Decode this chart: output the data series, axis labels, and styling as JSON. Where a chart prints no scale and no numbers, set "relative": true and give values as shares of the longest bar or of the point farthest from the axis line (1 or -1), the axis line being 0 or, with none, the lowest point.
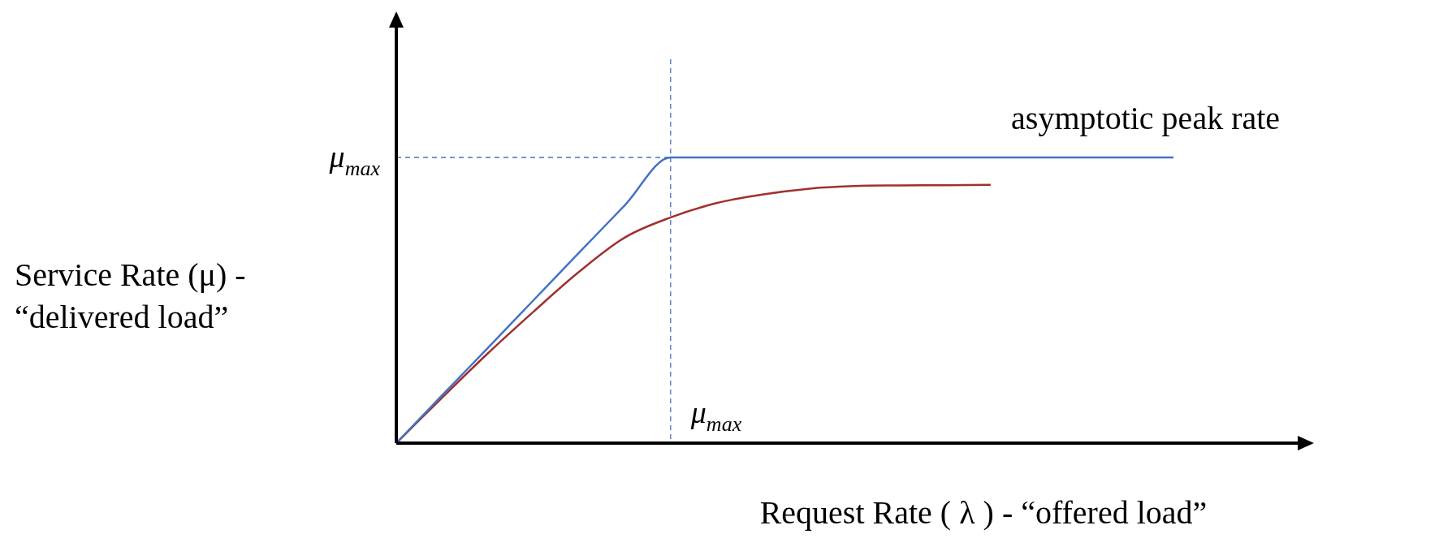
{
  "chart_data": {
    "type": "line",
    "relative": true,
    "xlabel": "Request Rate ( λ ) - “offered load”",
    "ylabel": "Service Rate (μ) -\n“delivered load”",
    "categories": [
      null,
      null,
      null,
      null,
      null,
      null,
      null,
      null,
      null,
      null,
      null,
      null,
      null,
      null,
      null,
      null,
      null,
      null,
      null,
      null,
      null
    ],
    "tick_labels": false,
    "grid": false,
    "legend": false,
    "marker": "none",
    "line_style": "solid",
    "series": [
      {
        "color": "#4472c4",
        "values": [
          0,
          0.167,
          0.333,
          0.5,
          0.667,
          0.833,
          1,
          1,
          1,
          1,
          1,
          1,
          1,
          1,
          1,
          1,
          1,
          1,
          null,
          null,
          null
        ]
      },
      {
        "color": "#a0302f",
        "values": [
          0,
          0.159,
          0.314,
          0.46,
          0.6,
          0.72,
          0.79,
          0.84,
          0.87,
          0.89,
          0.9,
          0.902,
          0.903,
          0.904,
          null,
          null,
          null,
          null,
          null,
          null,
          null
        ]
      }
    ],
    "ref_lines": [
      {
        "axis": "x",
        "label": "μ$_{max}$",
        "color": "#4472c4",
        "line_style": "dashed"
      },
      {
        "axis": "y",
        "value": 1,
        "label": "μ$_{max}$",
        "color": "#4472c4",
        "line_style": "dashed"
      }
    ],
    "annotations": [
      "asymptotic peak rate"
    ]
  }
}
